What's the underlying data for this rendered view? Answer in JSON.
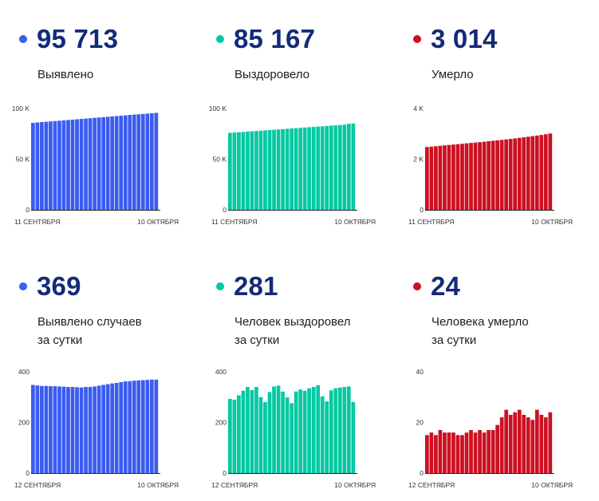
{
  "colors": {
    "blue": "#3b5cf0",
    "green": "#06c9a2",
    "red": "#cc1021",
    "number": "#142a79"
  },
  "panels": [
    {
      "value": "95 713",
      "label_lines": [
        "Выявлено"
      ],
      "color": "#3b5cf0",
      "chart_data": {
        "type": "bar",
        "y_ticks": [
          {
            "value": 0,
            "label": "0"
          },
          {
            "value": 50000,
            "label": "50 K"
          },
          {
            "value": 100000,
            "label": "100 K"
          }
        ],
        "ylim": [
          0,
          100000
        ],
        "x_labels": {
          "start": "11 СЕНТЯБРЯ",
          "end": "10 ОКТЯБРЯ"
        },
        "values": [
          85830,
          86214,
          86578,
          86922,
          87259,
          87599,
          87938,
          88289,
          88648,
          89001,
          89356,
          89694,
          90041,
          90391,
          90746,
          91108,
          91474,
          91843,
          92216,
          92556,
          92891,
          93248,
          93605,
          93974,
          94304,
          94619,
          94976,
          95344,
          95713
        ]
      }
    },
    {
      "value": "85 167",
      "label_lines": [
        "Выздоровело"
      ],
      "color": "#06c9a2",
      "chart_data": {
        "type": "bar",
        "y_ticks": [
          {
            "value": 0,
            "label": "0"
          },
          {
            "value": 50000,
            "label": "50 K"
          },
          {
            "value": 100000,
            "label": "100 K"
          }
        ],
        "ylim": [
          0,
          100000
        ],
        "x_labels": {
          "start": "11 СЕНТЯБРЯ",
          "end": "10 ОКТЯБРЯ"
        },
        "values": [
          75990,
          76283,
          76573,
          76880,
          77205,
          77530,
          77808,
          78101,
          78441,
          78781,
          79104,
          79380,
          79661,
          79977,
          80307,
          80603,
          80923,
          81241,
          81515,
          81809,
          82149,
          82437,
          82782,
          83121,
          83383,
          83717,
          83994,
          84886,
          85167
        ]
      }
    },
    {
      "value": "3 014",
      "label_lines": [
        "Умерло"
      ],
      "color": "#cc1021",
      "chart_data": {
        "type": "bar",
        "y_ticks": [
          {
            "value": 0,
            "label": "0"
          },
          {
            "value": 2000,
            "label": "2 K"
          },
          {
            "value": 4000,
            "label": "4 K"
          }
        ],
        "ylim": [
          0,
          4000
        ],
        "x_labels": {
          "start": "11 СЕНТЯБРЯ",
          "end": "10 ОКТЯБРЯ"
        },
        "values": [
          2480,
          2496,
          2512,
          2528,
          2544,
          2560,
          2576,
          2592,
          2608,
          2624,
          2640,
          2656,
          2672,
          2690,
          2708,
          2726,
          2744,
          2762,
          2780,
          2800,
          2820,
          2842,
          2864,
          2886,
          2908,
          2932,
          2956,
          2984,
          3014
        ]
      }
    },
    {
      "value": "369",
      "label_lines": [
        "Выявлено случаев",
        "за сутки"
      ],
      "color": "#3b5cf0",
      "chart_data": {
        "type": "bar",
        "y_ticks": [
          {
            "value": 0,
            "label": "0"
          },
          {
            "value": 200,
            "label": "200"
          },
          {
            "value": 400,
            "label": "400"
          }
        ],
        "ylim": [
          0,
          400
        ],
        "x_labels": {
          "start": "12 СЕНТЯБРЯ",
          "end": "10 ОКТЯБРЯ"
        },
        "values": [
          348,
          346,
          344,
          344,
          343,
          343,
          342,
          341,
          340,
          340,
          339,
          338,
          340,
          340,
          342,
          345,
          348,
          351,
          354,
          356,
          359,
          362,
          363,
          365,
          366,
          367,
          368,
          369,
          369
        ]
      }
    },
    {
      "value": "281",
      "label_lines": [
        "Человек выздоровел",
        "за сутки"
      ],
      "color": "#06c9a2",
      "chart_data": {
        "type": "bar",
        "y_ticks": [
          {
            "value": 0,
            "label": "0"
          },
          {
            "value": 200,
            "label": "200"
          },
          {
            "value": 400,
            "label": "400"
          }
        ],
        "ylim": [
          0,
          400
        ],
        "x_labels": {
          "start": "12 СЕНТЯБРЯ",
          "end": "10 ОКТЯБРЯ"
        },
        "values": [
          293,
          290,
          307,
          325,
          340,
          328,
          340,
          300,
          280,
          320,
          342,
          345,
          322,
          299,
          276,
          322,
          330,
          325,
          335,
          340,
          347,
          303,
          283,
          327,
          335,
          338,
          340,
          342,
          281
        ]
      }
    },
    {
      "value": "24",
      "label_lines": [
        "Человека умерло",
        "за сутки"
      ],
      "color": "#cc1021",
      "chart_data": {
        "type": "bar",
        "y_ticks": [
          {
            "value": 0,
            "label": "0"
          },
          {
            "value": 20,
            "label": "20"
          },
          {
            "value": 40,
            "label": "40"
          }
        ],
        "ylim": [
          0,
          40
        ],
        "x_labels": {
          "start": "12 СЕНТЯБРЯ",
          "end": "10 ОКТЯБРЯ"
        },
        "values": [
          15,
          16,
          15,
          17,
          16,
          16,
          16,
          15,
          15,
          16,
          17,
          16,
          17,
          16,
          17,
          17,
          19,
          22,
          25,
          23,
          24,
          25,
          23,
          22,
          21,
          25,
          23,
          22,
          24
        ]
      }
    }
  ]
}
